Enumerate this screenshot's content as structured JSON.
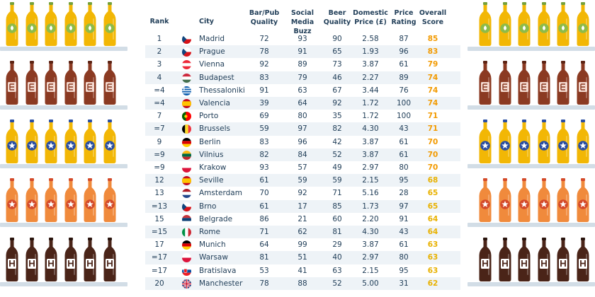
{
  "headers": {
    "rank": "Rank",
    "city": "City",
    "bar_pub": [
      "Bar/Pub",
      "Quality"
    ],
    "social": [
      "Social",
      "Media Buzz"
    ],
    "beer": [
      "Beer",
      "Quality"
    ],
    "price": [
      "Domestic",
      "Price (£)"
    ],
    "price_rating": [
      "Price",
      "Rating"
    ],
    "overall": [
      "Overall",
      "Score"
    ]
  },
  "chart_data": {
    "type": "table",
    "columns": [
      "Rank",
      "City",
      "Bar/Pub Quality",
      "Social Media Buzz",
      "Beer Quality",
      "Domestic Price (£)",
      "Price Rating",
      "Overall Score"
    ],
    "rows": [
      {
        "rank": "1",
        "city": "Madrid",
        "bar": "72",
        "social": "93",
        "beer": "90",
        "price": "2.58",
        "rating": "87",
        "score": "85",
        "flag": "cz"
      },
      {
        "rank": "2",
        "city": "Prague",
        "bar": "78",
        "social": "91",
        "beer": "65",
        "price": "1.93",
        "rating": "96",
        "score": "83",
        "flag": "cz"
      },
      {
        "rank": "3",
        "city": "Vienna",
        "bar": "92",
        "social": "89",
        "beer": "73",
        "price": "3.87",
        "rating": "61",
        "score": "79",
        "flag": "at"
      },
      {
        "rank": "4",
        "city": "Budapest",
        "bar": "83",
        "social": "79",
        "beer": "46",
        "price": "2.27",
        "rating": "89",
        "score": "74",
        "flag": "hu"
      },
      {
        "rank": "=4",
        "city": "Thessaloniki",
        "bar": "91",
        "social": "63",
        "beer": "67",
        "price": "3.44",
        "rating": "76",
        "score": "74",
        "flag": "gr"
      },
      {
        "rank": "=4",
        "city": "Valencia",
        "bar": "39",
        "social": "64",
        "beer": "92",
        "price": "1.72",
        "rating": "100",
        "score": "74",
        "flag": "es"
      },
      {
        "rank": "7",
        "city": "Porto",
        "bar": "69",
        "social": "80",
        "beer": "35",
        "price": "1.72",
        "rating": "100",
        "score": "71",
        "flag": "pt"
      },
      {
        "rank": "=7",
        "city": "Brussels",
        "bar": "59",
        "social": "97",
        "beer": "82",
        "price": "4.30",
        "rating": "43",
        "score": "71",
        "flag": "be"
      },
      {
        "rank": "9",
        "city": "Berlin",
        "bar": "83",
        "social": "96",
        "beer": "42",
        "price": "3.87",
        "rating": "61",
        "score": "70",
        "flag": "de"
      },
      {
        "rank": "=9",
        "city": "Vilnius",
        "bar": "82",
        "social": "84",
        "beer": "52",
        "price": "3.87",
        "rating": "61",
        "score": "70",
        "flag": "lt"
      },
      {
        "rank": "=9",
        "city": "Krakow",
        "bar": "93",
        "social": "57",
        "beer": "49",
        "price": "2.97",
        "rating": "80",
        "score": "70",
        "flag": "pl"
      },
      {
        "rank": "12",
        "city": "Seville",
        "bar": "61",
        "social": "59",
        "beer": "59",
        "price": "2.15",
        "rating": "95",
        "score": "68",
        "flag": "es"
      },
      {
        "rank": "13",
        "city": "Amsterdam",
        "bar": "70",
        "social": "92",
        "beer": "71",
        "price": "5.16",
        "rating": "28",
        "score": "65",
        "flag": "nl"
      },
      {
        "rank": "=13",
        "city": "Brno",
        "bar": "61",
        "social": "17",
        "beer": "85",
        "price": "1.73",
        "rating": "97",
        "score": "65",
        "flag": "cz"
      },
      {
        "rank": "15",
        "city": "Belgrade",
        "bar": "86",
        "social": "21",
        "beer": "60",
        "price": "2.20",
        "rating": "91",
        "score": "64",
        "flag": "rs"
      },
      {
        "rank": "=15",
        "city": "Rome",
        "bar": "71",
        "social": "62",
        "beer": "81",
        "price": "4.30",
        "rating": "43",
        "score": "64",
        "flag": "it"
      },
      {
        "rank": "17",
        "city": "Munich",
        "bar": "64",
        "social": "99",
        "beer": "29",
        "price": "3.87",
        "rating": "61",
        "score": "63",
        "flag": "de"
      },
      {
        "rank": "=17",
        "city": "Warsaw",
        "bar": "81",
        "social": "51",
        "beer": "40",
        "price": "2.97",
        "rating": "80",
        "score": "63",
        "flag": "pl"
      },
      {
        "rank": "=17",
        "city": "Bratislava",
        "bar": "53",
        "social": "41",
        "beer": "63",
        "price": "2.15",
        "rating": "95",
        "score": "63",
        "flag": "sk"
      },
      {
        "rank": "20",
        "city": "Manchester",
        "bar": "78",
        "social": "88",
        "beer": "52",
        "price": "5.00",
        "rating": "31",
        "score": "62",
        "flag": "gb"
      }
    ]
  },
  "colors": {
    "text": "#23405a",
    "stripe": "#eef3f7",
    "score_high": "#f29a00",
    "score_low": "#e8b100",
    "shelf": "#d2dde6"
  },
  "shelves": [
    {
      "bottle": "#f2b705",
      "cap": "#76a13b",
      "label": "#8dbb49",
      "mark": "leaf"
    },
    {
      "bottle": "#8b3a22",
      "cap": "#5e2414",
      "label": "#f3d9cf",
      "mark": "E"
    },
    {
      "bottle": "#f2b705",
      "cap": "#2b4fa2",
      "label": "#2b4fa2",
      "mark": "star"
    },
    {
      "bottle": "#f08a3c",
      "cap": "#d44b2a",
      "label": "#d44b2a",
      "mark": "star"
    },
    {
      "bottle": "#4a2418",
      "cap": "#2a140d",
      "label": "#ffffff",
      "mark": "H"
    }
  ]
}
